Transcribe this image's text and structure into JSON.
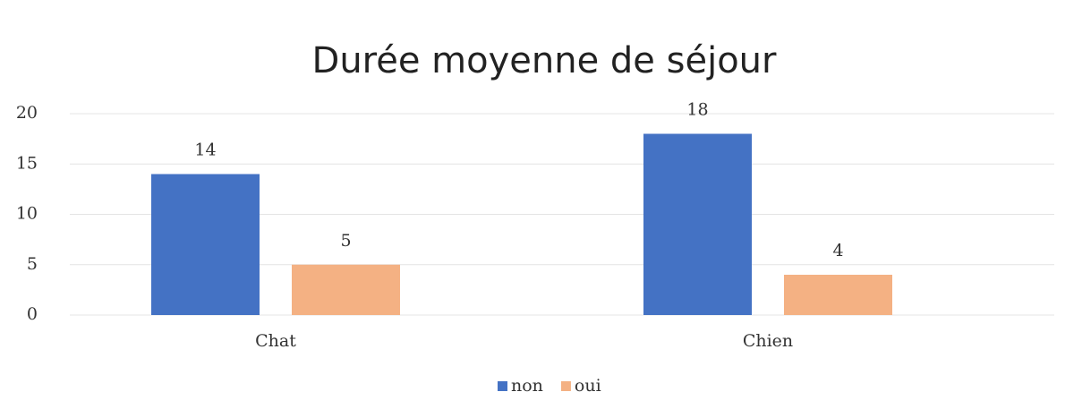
{
  "chart_data": {
    "type": "bar",
    "title": "Durée moyenne de séjour",
    "categories": [
      "Chat",
      "Chien"
    ],
    "series": [
      {
        "name": "non",
        "color": "#4472c4",
        "values": [
          14,
          18
        ]
      },
      {
        "name": "oui",
        "color": "#f4b183",
        "values": [
          5,
          4
        ]
      }
    ],
    "ylim": [
      0,
      20
    ],
    "yticks": [
      0,
      5,
      10,
      15,
      20
    ],
    "grid": true,
    "legend": "bottom"
  }
}
